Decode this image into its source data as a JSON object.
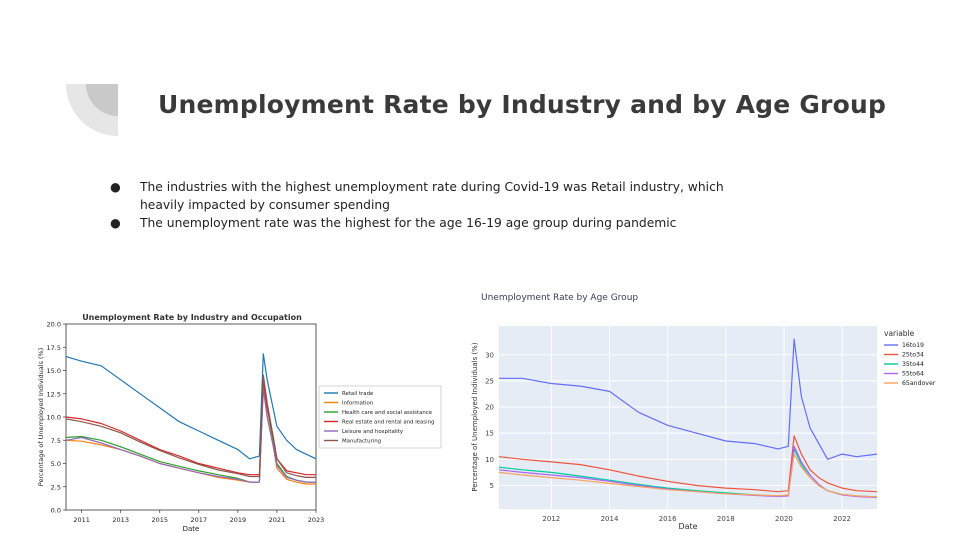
{
  "slide": {
    "title": "Unemployment Rate by Industry and by Age Group",
    "bullets": [
      "The industries with the highest unemployment rate during Covid-19 was Retail industry,  which heavily impacted by consumer spending",
      "The unemployment rate was the highest for the age 16-19 age group during pandemic"
    ],
    "bullet_symbol": "●"
  },
  "chart_data": [
    {
      "type": "line",
      "title": "Unemployment Rate by Industry and Occupation",
      "xlabel": "Date",
      "ylabel": "Percentage of Unemployed Individuals (%)",
      "xlim": [
        2010.2,
        2023.0
      ],
      "ylim": [
        0.0,
        20.0
      ],
      "xticks": [
        "2011",
        "2013",
        "2015",
        "2017",
        "2019",
        "2021",
        "2023"
      ],
      "xtick_values": [
        2011,
        2013,
        2015,
        2017,
        2019,
        2021,
        2023
      ],
      "yticks": [
        "0.0",
        "2.5",
        "5.0",
        "7.5",
        "10.0",
        "12.5",
        "15.0",
        "17.5",
        "20.0"
      ],
      "ytick_values": [
        0,
        2.5,
        5,
        7.5,
        10,
        12.5,
        15,
        17.5,
        20
      ],
      "grid": false,
      "legend_position": "right",
      "x": [
        2010.2,
        2011,
        2012,
        2013,
        2014,
        2015,
        2016,
        2017,
        2018,
        2019,
        2019.6,
        2020.1,
        2020.3,
        2020.5,
        2020.8,
        2021,
        2021.5,
        2022,
        2022.5,
        2023
      ],
      "series": [
        {
          "name": "Retail trade",
          "color": "#1f77b4",
          "values": [
            16.5,
            16.0,
            15.5,
            14.0,
            12.5,
            11.0,
            9.5,
            8.5,
            7.5,
            6.5,
            5.5,
            5.8,
            16.8,
            14.0,
            11.0,
            9.0,
            7.5,
            6.5,
            6.0,
            5.5
          ]
        },
        {
          "name": "Information",
          "color": "#ff7f0e",
          "values": [
            7.5,
            7.4,
            7.0,
            6.5,
            5.8,
            5.0,
            4.5,
            4.0,
            3.5,
            3.2,
            3.0,
            3.0,
            13.5,
            10.0,
            7.0,
            4.5,
            3.3,
            3.0,
            2.8,
            2.8
          ]
        },
        {
          "name": "Health care and social assistance",
          "color": "#2ca02c",
          "values": [
            7.8,
            7.9,
            7.5,
            6.8,
            6.0,
            5.2,
            4.7,
            4.2,
            3.8,
            3.4,
            3.0,
            3.0,
            14.5,
            11.0,
            7.5,
            5.0,
            3.6,
            3.2,
            3.0,
            3.0
          ]
        },
        {
          "name": "Real estate and rental and leasing",
          "color": "#d62728",
          "values": [
            10.0,
            9.8,
            9.3,
            8.5,
            7.5,
            6.5,
            5.8,
            5.0,
            4.5,
            4.0,
            3.8,
            3.8,
            14.0,
            11.0,
            8.0,
            5.5,
            4.2,
            4.0,
            3.8,
            3.8
          ]
        },
        {
          "name": "Leisure and hospitality",
          "color": "#9467bd",
          "values": [
            7.5,
            7.8,
            7.2,
            6.5,
            5.8,
            5.0,
            4.5,
            4.0,
            3.6,
            3.3,
            3.0,
            3.0,
            13.0,
            10.0,
            7.0,
            4.8,
            3.5,
            3.2,
            3.0,
            3.0
          ]
        },
        {
          "name": "Manufacturing",
          "color": "#8c564b",
          "values": [
            9.8,
            9.5,
            9.0,
            8.3,
            7.3,
            6.4,
            5.6,
            4.9,
            4.3,
            3.9,
            3.6,
            3.6,
            14.5,
            11.5,
            8.0,
            5.5,
            4.0,
            3.7,
            3.5,
            3.5
          ]
        }
      ]
    },
    {
      "type": "line",
      "title": "Unemployment Rate by Age Group",
      "xlabel": "Date",
      "ylabel": "Percentage of Unemployed Individuals (%)",
      "legend_title": "variable",
      "xlim": [
        2010.2,
        2023.2
      ],
      "ylim": [
        0.5,
        35.5
      ],
      "xticks": [
        "2012",
        "2014",
        "2016",
        "2018",
        "2020",
        "2022"
      ],
      "xtick_values": [
        2012,
        2014,
        2016,
        2018,
        2020,
        2022
      ],
      "yticks": [
        "5",
        "10",
        "15",
        "20",
        "25",
        "30"
      ],
      "ytick_values": [
        5,
        10,
        15,
        20,
        25,
        30
      ],
      "grid": true,
      "legend_position": "right",
      "x": [
        2010.2,
        2011,
        2012,
        2013,
        2014,
        2015,
        2016,
        2017,
        2018,
        2019,
        2019.8,
        2020.15,
        2020.35,
        2020.6,
        2020.9,
        2021.2,
        2021.5,
        2022,
        2022.5,
        2023.2
      ],
      "series": [
        {
          "name": "16to19",
          "color": "#636efa",
          "values": [
            25.5,
            25.5,
            24.5,
            24.0,
            23.0,
            19.0,
            16.5,
            15.0,
            13.5,
            13.0,
            12.0,
            12.5,
            33.0,
            22.0,
            16.0,
            13.0,
            10.0,
            11.0,
            10.5,
            11.0
          ]
        },
        {
          "name": "25to34",
          "color": "#ef553b",
          "values": [
            10.5,
            10.0,
            9.5,
            9.0,
            8.0,
            6.8,
            5.8,
            5.0,
            4.5,
            4.2,
            3.8,
            4.0,
            14.5,
            11.0,
            8.0,
            6.5,
            5.5,
            4.5,
            4.0,
            3.8
          ]
        },
        {
          "name": "35to44",
          "color": "#00cc96",
          "values": [
            8.5,
            8.0,
            7.5,
            6.8,
            6.0,
            5.2,
            4.5,
            4.0,
            3.6,
            3.2,
            3.0,
            3.0,
            12.0,
            9.0,
            6.5,
            5.0,
            4.0,
            3.3,
            3.0,
            2.8
          ]
        },
        {
          "name": "55to64",
          "color": "#ab63fa",
          "values": [
            8.0,
            7.5,
            7.0,
            6.5,
            5.8,
            5.0,
            4.3,
            3.8,
            3.4,
            3.1,
            2.9,
            3.0,
            12.5,
            9.5,
            7.0,
            5.2,
            4.0,
            3.2,
            2.9,
            2.7
          ]
        },
        {
          "name": "65andover",
          "color": "#ffa15a",
          "values": [
            7.5,
            7.0,
            6.5,
            6.0,
            5.4,
            4.8,
            4.2,
            3.8,
            3.4,
            3.2,
            3.0,
            3.2,
            11.0,
            8.5,
            6.5,
            5.0,
            4.0,
            3.3,
            3.0,
            2.8
          ]
        }
      ]
    }
  ]
}
